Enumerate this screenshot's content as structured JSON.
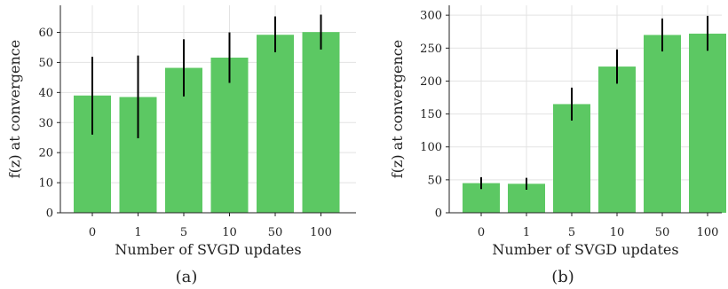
{
  "chart_data": [
    {
      "type": "bar",
      "panel_label": "(a)",
      "categories": [
        "0",
        "1",
        "5",
        "10",
        "50",
        "100"
      ],
      "values": [
        39,
        38.5,
        48.2,
        51.6,
        59.2,
        60.1
      ],
      "error_low": [
        26,
        24.8,
        38.7,
        43.2,
        53.4,
        54.3
      ],
      "error_high": [
        51.9,
        52.3,
        57.7,
        60,
        65.3,
        65.9
      ],
      "xlabel": "Number of SVGD updates",
      "ylabel": "f(z) at convergence",
      "ylim": [
        0,
        69
      ],
      "yticks": [
        0,
        10,
        20,
        30,
        40,
        50,
        60
      ],
      "grid": true,
      "bar_color": "#5cc863",
      "error_color": "#000000"
    },
    {
      "type": "bar",
      "panel_label": "(b)",
      "categories": [
        "0",
        "1",
        "5",
        "10",
        "50",
        "100"
      ],
      "values": [
        45,
        44,
        165,
        222,
        270,
        272
      ],
      "error_low": [
        36,
        35,
        140,
        196,
        245,
        246
      ],
      "error_high": [
        54,
        53,
        190,
        248,
        295,
        299
      ],
      "xlabel": "Number of SVGD updates",
      "ylabel": "f(z) at convergence",
      "ylim": [
        0,
        315
      ],
      "yticks": [
        0,
        50,
        100,
        150,
        200,
        250,
        300
      ],
      "grid": true,
      "bar_color": "#5cc863",
      "error_color": "#000000"
    }
  ]
}
